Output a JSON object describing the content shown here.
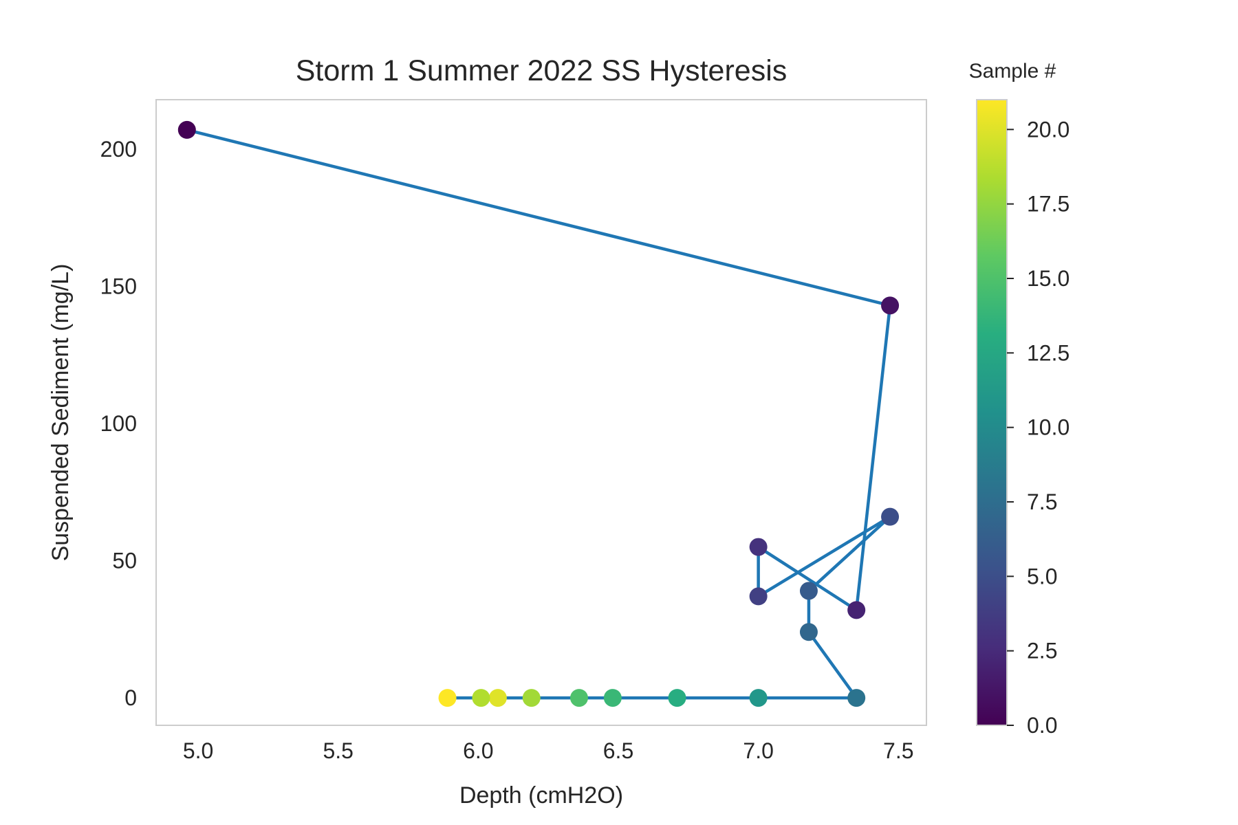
{
  "chart_data": {
    "type": "scatter",
    "title": "Storm 1 Summer 2022 SS Hysteresis",
    "xlabel": "Depth (cmH2O)",
    "ylabel": "Suspended Sediment (mg/L)",
    "xlim": [
      4.85,
      7.6
    ],
    "ylim": [
      -10,
      218
    ],
    "xticks": [
      5.0,
      5.5,
      6.0,
      6.5,
      7.0,
      7.5
    ],
    "xtick_labels": [
      "5.0",
      "5.5",
      "6.0",
      "6.5",
      "7.0",
      "7.5"
    ],
    "yticks": [
      0,
      50,
      100,
      150,
      200
    ],
    "ytick_labels": [
      "0",
      "50",
      "100",
      "150",
      "200"
    ],
    "grid": false,
    "line_color": "#1f77b4",
    "colormap": "viridis",
    "colorbar": {
      "label": "Sample #",
      "range": [
        0,
        21
      ],
      "ticks": [
        0.0,
        2.5,
        5.0,
        7.5,
        10.0,
        12.5,
        15.0,
        17.5,
        20.0
      ],
      "tick_labels": [
        "0.0",
        "2.5",
        "5.0",
        "7.5",
        "10.0",
        "12.5",
        "15.0",
        "17.5",
        "20.0"
      ]
    },
    "points": [
      {
        "sample": 0,
        "x": 4.96,
        "y": 207
      },
      {
        "sample": 1,
        "x": 7.47,
        "y": 143
      },
      {
        "sample": 2,
        "x": 7.35,
        "y": 32
      },
      {
        "sample": 3,
        "x": 7.0,
        "y": 55
      },
      {
        "sample": 4,
        "x": 7.0,
        "y": 37
      },
      {
        "sample": 5,
        "x": 7.47,
        "y": 66
      },
      {
        "sample": 6,
        "x": 7.18,
        "y": 39
      },
      {
        "sample": 7,
        "x": 7.18,
        "y": 24
      },
      {
        "sample": 8,
        "x": 7.35,
        "y": 0
      },
      {
        "sample": 11,
        "x": 7.0,
        "y": 0
      },
      {
        "sample": 13,
        "x": 6.71,
        "y": 0
      },
      {
        "sample": 14,
        "x": 6.48,
        "y": 0
      },
      {
        "sample": 15,
        "x": 6.36,
        "y": 0
      },
      {
        "sample": 18,
        "x": 6.19,
        "y": 0
      },
      {
        "sample": 20,
        "x": 6.07,
        "y": 0
      },
      {
        "sample": 18.5,
        "x": 6.01,
        "y": 0
      },
      {
        "sample": 21,
        "x": 5.89,
        "y": 0
      }
    ]
  }
}
